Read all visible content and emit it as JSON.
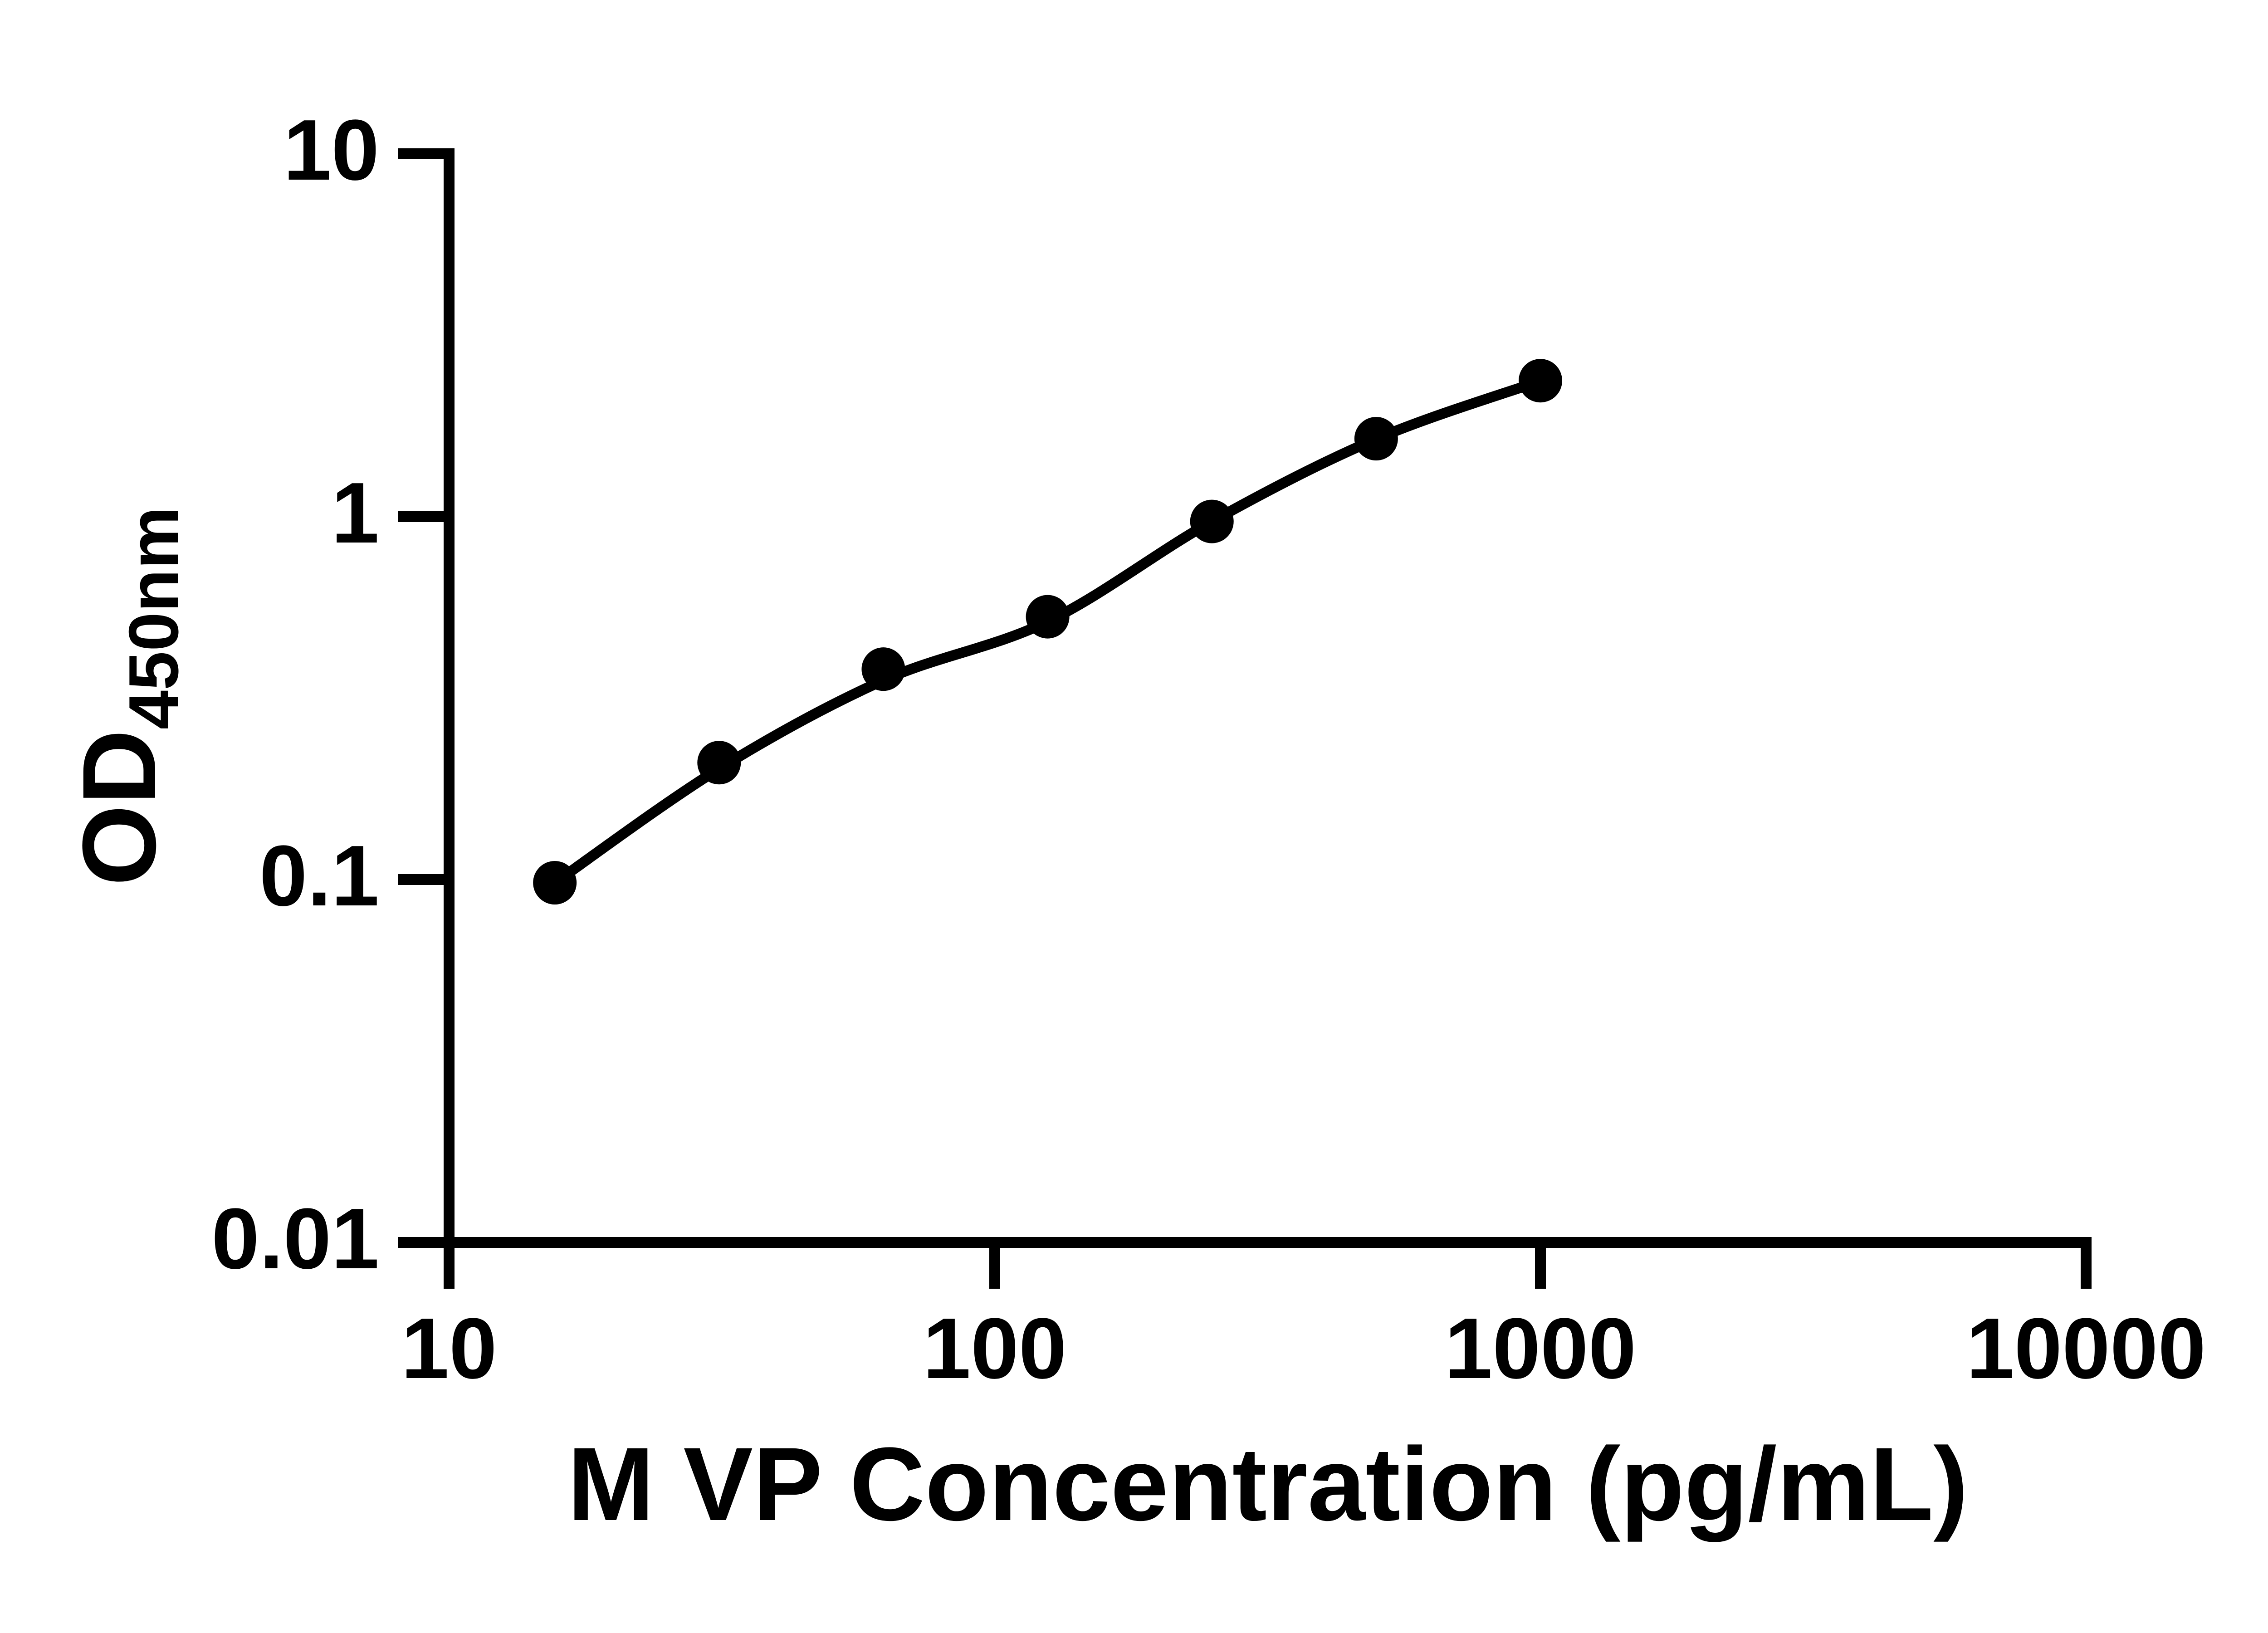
{
  "figure": {
    "background": "#ffffff",
    "ink_color": "#000000"
  },
  "y_axis": {
    "title_main": "OD",
    "title_sub": "450nm",
    "scale": "log",
    "range": [
      0.01,
      10
    ],
    "tick_labels": [
      "10",
      "1",
      "0.1",
      "0.01"
    ],
    "tick_values": [
      10,
      1,
      0.1,
      0.01
    ]
  },
  "x_axis": {
    "title": "M VP Concentration (pg/mL)",
    "scale": "log",
    "range": [
      10,
      10000
    ],
    "tick_labels": [
      "10",
      "100",
      "1000",
      "10000"
    ],
    "tick_values": [
      10,
      100,
      1000,
      10000
    ]
  },
  "chart_data": {
    "type": "scatter",
    "title": "",
    "xlabel": "M VP Concentration (pg/mL)",
    "ylabel": "OD450nm",
    "xscale": "log",
    "yscale": "log",
    "xlim": [
      10,
      10000
    ],
    "ylim": [
      0.01,
      10
    ],
    "grid": false,
    "legend": "none",
    "marker": "filled-circle",
    "marker_color": "#000000",
    "line_color": "#000000",
    "x": [
      15.625,
      31.25,
      62.5,
      125,
      250,
      500,
      1000
    ],
    "y": [
      0.098,
      0.21,
      0.38,
      0.53,
      0.97,
      1.64,
      2.37
    ],
    "fit_curve": {
      "description": "smooth standard-curve fit drawn through the series",
      "x": [
        15.625,
        31.25,
        62.5,
        125,
        250,
        500,
        1000
      ],
      "y": [
        0.098,
        0.202,
        0.354,
        0.514,
        0.97,
        1.637,
        2.365
      ]
    }
  }
}
